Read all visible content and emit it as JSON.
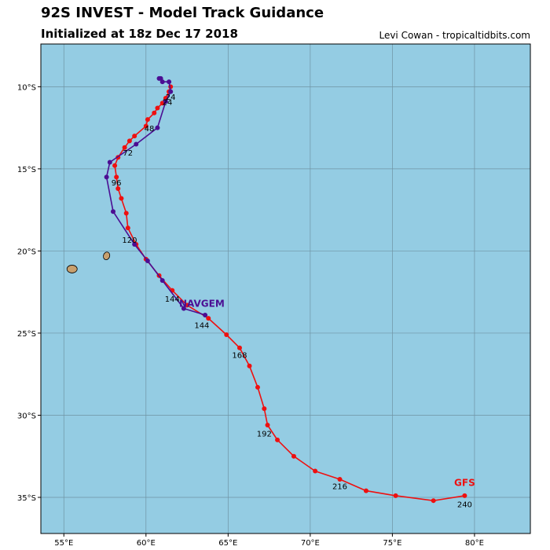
{
  "header": {
    "title": "92S INVEST - Model Track Guidance",
    "subtitle": "Initialized at 18z Dec 17 2018",
    "credit": "Levi Cowan - tropicaltidbits.com"
  },
  "colors": {
    "ocean": "#94cce3",
    "land": "#c8a06e",
    "grid": "#6f93a3",
    "gfs": "#ee1010",
    "navgem": "#4b0e93"
  },
  "chart_data": {
    "type": "map-track",
    "title": "92S INVEST - Model Track Guidance",
    "lon_range": [
      53.6,
      83.4
    ],
    "lat_range": [
      -37.2,
      -7.4
    ],
    "lon_ticks": [
      {
        "value": 55,
        "label": "55°E"
      },
      {
        "value": 60,
        "label": "60°E"
      },
      {
        "value": 65,
        "label": "65°E"
      },
      {
        "value": 70,
        "label": "70°E"
      },
      {
        "value": 75,
        "label": "75°E"
      },
      {
        "value": 80,
        "label": "80°E"
      }
    ],
    "lat_ticks": [
      {
        "value": -10,
        "label": "10°S"
      },
      {
        "value": -15,
        "label": "15°S"
      },
      {
        "value": -20,
        "label": "20°S"
      },
      {
        "value": -25,
        "label": "25°S"
      },
      {
        "value": -30,
        "label": "30°S"
      },
      {
        "value": -35,
        "label": "35°S"
      }
    ],
    "islands": [
      {
        "name": "Reunion",
        "lon": 55.5,
        "lat": -21.1
      },
      {
        "name": "Mauritius",
        "lon": 57.6,
        "lat": -20.3
      }
    ],
    "series": [
      {
        "name": "GFS",
        "label": "GFS",
        "color_key": "gfs",
        "label_lon": 79.4,
        "label_lat": -34.3,
        "points": [
          {
            "lon": 61.5,
            "lat": -10.0
          },
          {
            "lon": 61.4,
            "lat": -10.3
          },
          {
            "lon": 61.2,
            "lat": -10.7
          },
          {
            "lon": 61.0,
            "lat": -11.0
          },
          {
            "lon": 60.7,
            "lat": -11.3
          },
          {
            "lon": 60.5,
            "lat": -11.6
          },
          {
            "lon": 60.1,
            "lat": -12.0
          },
          {
            "lon": 60.0,
            "lat": -12.4
          },
          {
            "lon": 59.3,
            "lat": -13.0
          },
          {
            "lon": 59.0,
            "lat": -13.3
          },
          {
            "lon": 58.7,
            "lat": -13.7
          },
          {
            "lon": 58.3,
            "lat": -14.3
          },
          {
            "lon": 58.1,
            "lat": -14.8
          },
          {
            "lon": 58.2,
            "lat": -15.5
          },
          {
            "lon": 58.3,
            "lat": -16.2
          },
          {
            "lon": 58.5,
            "lat": -16.8
          },
          {
            "lon": 58.8,
            "lat": -17.7
          },
          {
            "lon": 58.9,
            "lat": -18.6
          },
          {
            "lon": 59.4,
            "lat": -19.6
          },
          {
            "lon": 60.0,
            "lat": -20.5
          },
          {
            "lon": 60.8,
            "lat": -21.5
          },
          {
            "lon": 61.6,
            "lat": -22.4
          },
          {
            "lon": 62.5,
            "lat": -23.3
          },
          {
            "lon": 63.8,
            "lat": -24.1
          },
          {
            "lon": 64.9,
            "lat": -25.1
          },
          {
            "lon": 65.7,
            "lat": -25.9
          },
          {
            "lon": 66.3,
            "lat": -27.0
          },
          {
            "lon": 66.8,
            "lat": -28.3
          },
          {
            "lon": 67.2,
            "lat": -29.6
          },
          {
            "lon": 67.4,
            "lat": -30.6
          },
          {
            "lon": 68.0,
            "lat": -31.5
          },
          {
            "lon": 69.0,
            "lat": -32.5
          },
          {
            "lon": 70.3,
            "lat": -33.4
          },
          {
            "lon": 71.8,
            "lat": -33.9
          },
          {
            "lon": 73.4,
            "lat": -34.6
          },
          {
            "lon": 75.2,
            "lat": -34.9
          },
          {
            "lon": 77.5,
            "lat": -35.2
          },
          {
            "lon": 79.4,
            "lat": -34.9
          }
        ]
      },
      {
        "name": "NAVGEM",
        "label": "NAVGEM",
        "color_key": "navgem",
        "label_lon": 63.4,
        "label_lat": -23.4,
        "points": [
          {
            "lon": 60.9,
            "lat": -9.5
          },
          {
            "lon": 60.8,
            "lat": -9.5
          },
          {
            "lon": 61.0,
            "lat": -9.7
          },
          {
            "lon": 61.4,
            "lat": -9.7
          },
          {
            "lon": 61.5,
            "lat": -10.3
          },
          {
            "lon": 61.2,
            "lat": -10.9
          },
          {
            "lon": 60.7,
            "lat": -12.5
          },
          {
            "lon": 59.4,
            "lat": -13.5
          },
          {
            "lon": 57.8,
            "lat": -14.6
          },
          {
            "lon": 57.6,
            "lat": -15.5
          },
          {
            "lon": 58.0,
            "lat": -17.6
          },
          {
            "lon": 59.3,
            "lat": -19.6
          },
          {
            "lon": 60.1,
            "lat": -20.6
          },
          {
            "lon": 61.0,
            "lat": -21.8
          },
          {
            "lon": 62.3,
            "lat": -23.5
          },
          {
            "lon": 63.6,
            "lat": -23.9
          }
        ]
      }
    ],
    "hour_labels": [
      {
        "text": "24",
        "lon": 61.5,
        "lat": -10.8
      },
      {
        "text": "24",
        "lon": 61.3,
        "lat": -11.1
      },
      {
        "text": "48",
        "lon": 60.2,
        "lat": -12.7
      },
      {
        "text": "72",
        "lon": 58.9,
        "lat": -14.2
      },
      {
        "text": "96",
        "lon": 58.2,
        "lat": -16.0
      },
      {
        "text": "120",
        "lon": 59.0,
        "lat": -19.5
      },
      {
        "text": "144",
        "lon": 61.6,
        "lat": -23.1
      },
      {
        "text": "144",
        "lon": 63.4,
        "lat": -24.7
      },
      {
        "text": "168",
        "lon": 65.7,
        "lat": -26.5
      },
      {
        "text": "192",
        "lon": 67.2,
        "lat": -31.3
      },
      {
        "text": "216",
        "lon": 71.8,
        "lat": -34.5
      },
      {
        "text": "240",
        "lon": 79.4,
        "lat": -35.6
      }
    ]
  }
}
